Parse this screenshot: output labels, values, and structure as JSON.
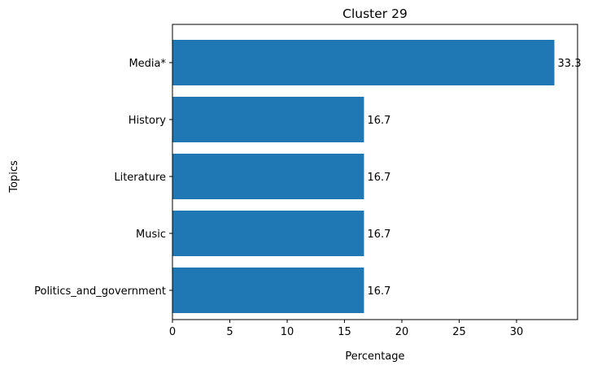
{
  "chart_data": {
    "type": "bar",
    "orientation": "horizontal",
    "title": "Cluster 29",
    "xlabel": "Percentage",
    "ylabel": "Topics",
    "categories": [
      "Media*",
      "History",
      "Literature",
      "Music",
      "Politics_and_government"
    ],
    "values": [
      33.3,
      16.7,
      16.7,
      16.7,
      16.7
    ],
    "data_labels": [
      "33.3",
      "16.7",
      "16.7",
      "16.7",
      "16.7"
    ],
    "xlim": [
      0,
      35
    ],
    "xticks": [
      0,
      5,
      10,
      15,
      20,
      25,
      30
    ],
    "grid": false,
    "bar_color": "#1f77b4"
  }
}
